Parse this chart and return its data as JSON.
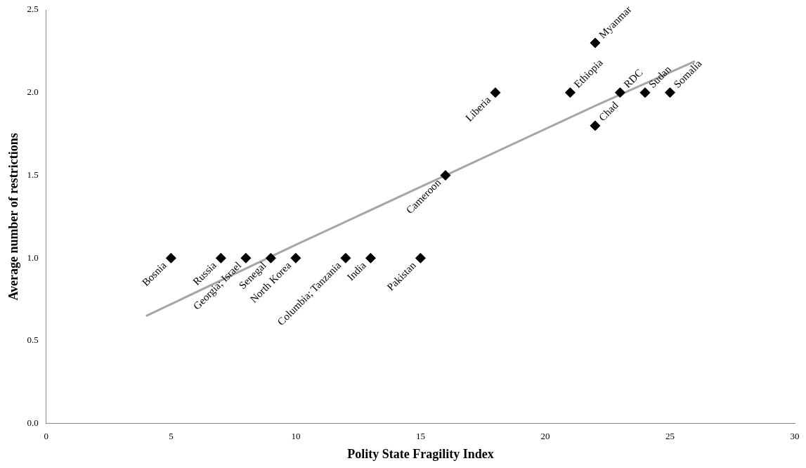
{
  "chart_data": {
    "type": "scatter",
    "xlabel": "Polity State Fragility Index",
    "ylabel": "Average number of restrictions",
    "xlim": [
      0,
      30
    ],
    "xticks": [
      0,
      5,
      10,
      15,
      20,
      25,
      30
    ],
    "ylim": [
      0,
      2.5
    ],
    "yticks": [
      {
        "value": 0,
        "label": "0.0"
      },
      {
        "value": 0.5,
        "label": "0.5"
      },
      {
        "value": 1,
        "label": "1.0"
      },
      {
        "value": 1.5,
        "label": "1.5"
      },
      {
        "value": 2,
        "label": "2.0"
      },
      {
        "value": 2.5,
        "label": "2.5"
      }
    ],
    "grid": false,
    "legend": false,
    "marker": "diamond",
    "series": [
      {
        "color": "#000000",
        "x": [
          5,
          7,
          8,
          9,
          10,
          12,
          13,
          15,
          16,
          18,
          21,
          22,
          22,
          23,
          24,
          25
        ],
        "values": [
          1,
          1,
          1,
          1,
          1,
          1,
          1,
          1,
          1.5,
          2,
          2,
          2.3,
          1.8,
          2,
          2,
          2
        ]
      },
      {
        "type": "line",
        "color": "#a6a6a6",
        "line_style": "solid",
        "marker": "none",
        "x": [
          4,
          10,
          16,
          22,
          26
        ],
        "values": [
          0.65,
          1.08,
          1.5,
          1.92,
          2.19
        ]
      }
    ],
    "annotations": [
      {
        "text": "Bosnia",
        "x": 5,
        "y": 1
      },
      {
        "text": "Russia",
        "x": 7,
        "y": 1
      },
      {
        "text": "Georgia; Israel",
        "x": 8,
        "y": 1
      },
      {
        "text": "Senegal",
        "x": 9,
        "y": 1
      },
      {
        "text": "North Korea",
        "x": 10,
        "y": 1
      },
      {
        "text": "Columbia; Tanzania",
        "x": 12,
        "y": 1
      },
      {
        "text": "India",
        "x": 13,
        "y": 1
      },
      {
        "text": "Pakistan",
        "x": 15,
        "y": 1
      },
      {
        "text": "Cameroon",
        "x": 16,
        "y": 1.5
      },
      {
        "text": "Liberia",
        "x": 18,
        "y": 2
      },
      {
        "text": "Ethiopia",
        "x": 21,
        "y": 2
      },
      {
        "text": "Myanmar",
        "x": 22,
        "y": 2.3
      },
      {
        "text": "Chad",
        "x": 22,
        "y": 1.8
      },
      {
        "text": "RDC",
        "x": 23,
        "y": 2
      },
      {
        "text": "Sudan",
        "x": 24,
        "y": 2
      },
      {
        "text": "Somalia",
        "x": 25,
        "y": 2
      }
    ]
  }
}
